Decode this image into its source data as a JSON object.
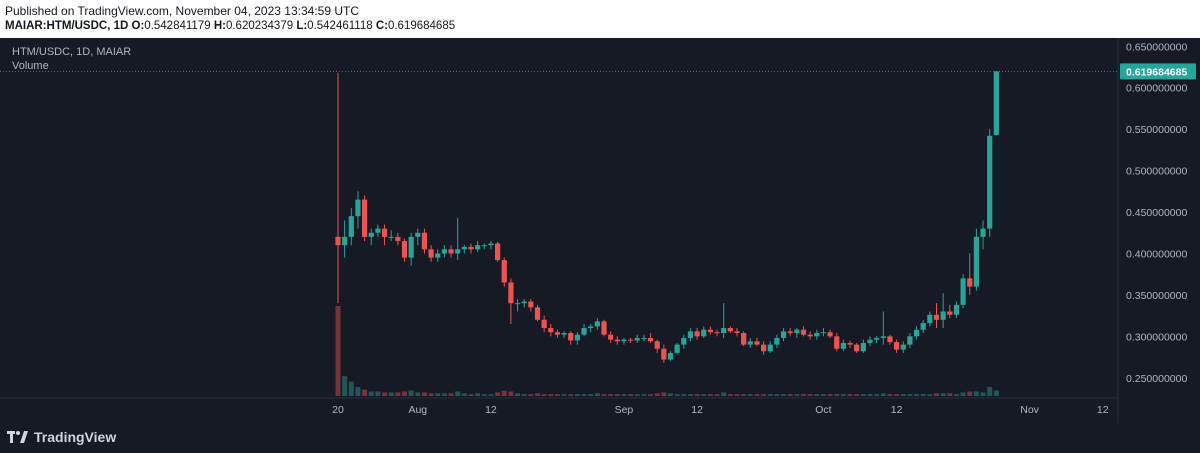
{
  "header": {
    "published": "Published on TradingView.com, November 04, 2023 13:34:59 UTC",
    "symbol_full": "MAIAR:HTM/USDC, 1D",
    "o_label": "O:",
    "o_value": "0.542841179",
    "h_label": "H:",
    "h_value": "0.620234379",
    "l_label": "L:",
    "l_value": "0.542461118",
    "c_label": "C:",
    "c_value": "0.619684685"
  },
  "chart_legend": {
    "symbol_line": "HTM/USDC, 1D, MAIAR",
    "volume_label": "Volume"
  },
  "footer": {
    "brand": "TradingView"
  },
  "colors": {
    "background": "#161a25",
    "up": "#26a69a",
    "down": "#ef5350",
    "text": "#b2b5be"
  },
  "chart_data": {
    "type": "candlestick",
    "title": "",
    "ylim": [
      0.228,
      0.66
    ],
    "y_ticks": [
      "0.650000000",
      "0.600000000",
      "0.550000000",
      "0.500000000",
      "0.450000000",
      "0.400000000",
      "0.350000000",
      "0.300000000",
      "0.250000000"
    ],
    "x_tick_labels": [
      {
        "label": "20",
        "day": 0
      },
      {
        "label": "Aug",
        "day": 12
      },
      {
        "label": "12",
        "day": 23
      },
      {
        "label": "Sep",
        "day": 43
      },
      {
        "label": "12",
        "day": 54
      },
      {
        "label": "Oct",
        "day": 73
      },
      {
        "label": "12",
        "day": 84
      },
      {
        "label": "Nov",
        "day": 104
      },
      {
        "label": "12",
        "day": 115
      }
    ],
    "last_price": "0.619684685",
    "last_value": 0.619684685,
    "candles": [
      [
        0.42,
        0.618,
        0.34,
        0.41
      ],
      [
        0.41,
        0.44,
        0.395,
        0.42
      ],
      [
        0.42,
        0.455,
        0.41,
        0.445
      ],
      [
        0.445,
        0.475,
        0.43,
        0.465
      ],
      [
        0.465,
        0.47,
        0.415,
        0.42
      ],
      [
        0.42,
        0.43,
        0.41,
        0.425
      ],
      [
        0.425,
        0.435,
        0.42,
        0.43
      ],
      [
        0.43,
        0.435,
        0.41,
        0.42
      ],
      [
        0.42,
        0.428,
        0.415,
        0.42
      ],
      [
        0.42,
        0.425,
        0.41,
        0.415
      ],
      [
        0.415,
        0.418,
        0.39,
        0.395
      ],
      [
        0.395,
        0.425,
        0.385,
        0.42
      ],
      [
        0.42,
        0.43,
        0.41,
        0.425
      ],
      [
        0.425,
        0.43,
        0.4,
        0.405
      ],
      [
        0.405,
        0.41,
        0.39,
        0.395
      ],
      [
        0.395,
        0.405,
        0.39,
        0.4
      ],
      [
        0.4,
        0.41,
        0.395,
        0.405
      ],
      [
        0.405,
        0.41,
        0.395,
        0.4
      ],
      [
        0.4,
        0.443,
        0.392,
        0.405
      ],
      [
        0.405,
        0.41,
        0.4,
        0.408
      ],
      [
        0.408,
        0.412,
        0.4,
        0.405
      ],
      [
        0.405,
        0.415,
        0.402,
        0.41
      ],
      [
        0.41,
        0.412,
        0.405,
        0.41
      ],
      [
        0.41,
        0.415,
        0.405,
        0.412
      ],
      [
        0.412,
        0.414,
        0.39,
        0.392
      ],
      [
        0.392,
        0.395,
        0.36,
        0.365
      ],
      [
        0.365,
        0.37,
        0.315,
        0.34
      ],
      [
        0.34,
        0.345,
        0.33,
        0.34
      ],
      [
        0.34,
        0.345,
        0.335,
        0.342
      ],
      [
        0.342,
        0.345,
        0.33,
        0.335
      ],
      [
        0.335,
        0.338,
        0.318,
        0.32
      ],
      [
        0.32,
        0.325,
        0.305,
        0.31
      ],
      [
        0.31,
        0.315,
        0.3,
        0.305
      ],
      [
        0.305,
        0.308,
        0.298,
        0.302
      ],
      [
        0.302,
        0.306,
        0.298,
        0.304
      ],
      [
        0.304,
        0.306,
        0.29,
        0.295
      ],
      [
        0.295,
        0.305,
        0.29,
        0.302
      ],
      [
        0.302,
        0.315,
        0.3,
        0.31
      ],
      [
        0.31,
        0.315,
        0.305,
        0.312
      ],
      [
        0.312,
        0.322,
        0.308,
        0.318
      ],
      [
        0.318,
        0.32,
        0.3,
        0.302
      ],
      [
        0.302,
        0.306,
        0.292,
        0.296
      ],
      [
        0.296,
        0.3,
        0.29,
        0.294
      ],
      [
        0.294,
        0.298,
        0.29,
        0.296
      ],
      [
        0.296,
        0.298,
        0.292,
        0.295
      ],
      [
        0.295,
        0.302,
        0.292,
        0.298
      ],
      [
        0.298,
        0.302,
        0.294,
        0.298
      ],
      [
        0.298,
        0.304,
        0.292,
        0.294
      ],
      [
        0.294,
        0.296,
        0.28,
        0.285
      ],
      [
        0.285,
        0.29,
        0.268,
        0.272
      ],
      [
        0.272,
        0.282,
        0.27,
        0.28
      ],
      [
        0.28,
        0.292,
        0.278,
        0.29
      ],
      [
        0.29,
        0.302,
        0.285,
        0.298
      ],
      [
        0.298,
        0.31,
        0.294,
        0.306
      ],
      [
        0.306,
        0.31,
        0.296,
        0.3
      ],
      [
        0.3,
        0.312,
        0.298,
        0.308
      ],
      [
        0.308,
        0.312,
        0.302,
        0.305
      ],
      [
        0.305,
        0.308,
        0.3,
        0.304
      ],
      [
        0.304,
        0.34,
        0.298,
        0.31
      ],
      [
        0.31,
        0.312,
        0.304,
        0.306
      ],
      [
        0.306,
        0.31,
        0.3,
        0.304
      ],
      [
        0.304,
        0.306,
        0.288,
        0.29
      ],
      [
        0.29,
        0.298,
        0.286,
        0.294
      ],
      [
        0.294,
        0.298,
        0.288,
        0.29
      ],
      [
        0.29,
        0.294,
        0.278,
        0.282
      ],
      [
        0.282,
        0.294,
        0.28,
        0.29
      ],
      [
        0.29,
        0.302,
        0.286,
        0.298
      ],
      [
        0.298,
        0.31,
        0.294,
        0.306
      ],
      [
        0.306,
        0.31,
        0.3,
        0.304
      ],
      [
        0.304,
        0.31,
        0.298,
        0.308
      ],
      [
        0.308,
        0.312,
        0.3,
        0.302
      ],
      [
        0.302,
        0.306,
        0.296,
        0.3
      ],
      [
        0.3,
        0.308,
        0.296,
        0.304
      ],
      [
        0.304,
        0.31,
        0.3,
        0.305
      ],
      [
        0.305,
        0.308,
        0.298,
        0.3
      ],
      [
        0.3,
        0.304,
        0.282,
        0.285
      ],
      [
        0.285,
        0.296,
        0.282,
        0.292
      ],
      [
        0.292,
        0.295,
        0.286,
        0.29
      ],
      [
        0.29,
        0.292,
        0.28,
        0.282
      ],
      [
        0.282,
        0.296,
        0.28,
        0.292
      ],
      [
        0.292,
        0.3,
        0.288,
        0.296
      ],
      [
        0.296,
        0.3,
        0.292,
        0.298
      ],
      [
        0.298,
        0.33,
        0.29,
        0.3
      ],
      [
        0.3,
        0.302,
        0.29,
        0.293
      ],
      [
        0.293,
        0.296,
        0.28,
        0.284
      ],
      [
        0.284,
        0.294,
        0.28,
        0.29
      ],
      [
        0.29,
        0.304,
        0.286,
        0.3
      ],
      [
        0.3,
        0.312,
        0.296,
        0.308
      ],
      [
        0.308,
        0.32,
        0.304,
        0.316
      ],
      [
        0.316,
        0.33,
        0.312,
        0.326
      ],
      [
        0.326,
        0.34,
        0.31,
        0.32
      ],
      [
        0.32,
        0.352,
        0.31,
        0.33
      ],
      [
        0.33,
        0.338,
        0.322,
        0.326
      ],
      [
        0.326,
        0.342,
        0.322,
        0.338
      ],
      [
        0.338,
        0.375,
        0.334,
        0.37
      ],
      [
        0.37,
        0.4,
        0.35,
        0.36
      ],
      [
        0.36,
        0.43,
        0.355,
        0.42
      ],
      [
        0.42,
        0.44,
        0.405,
        0.43
      ],
      [
        0.43,
        0.55,
        0.42,
        0.542
      ],
      [
        0.542841179,
        0.620234379,
        0.542461118,
        0.619684685
      ]
    ],
    "volume": [
      1.0,
      0.22,
      0.16,
      0.1,
      0.07,
      0.05,
      0.05,
      0.04,
      0.04,
      0.04,
      0.05,
      0.06,
      0.04,
      0.04,
      0.03,
      0.03,
      0.03,
      0.03,
      0.05,
      0.03,
      0.02,
      0.03,
      0.02,
      0.02,
      0.04,
      0.06,
      0.05,
      0.03,
      0.02,
      0.02,
      0.03,
      0.02,
      0.02,
      0.02,
      0.02,
      0.02,
      0.02,
      0.02,
      0.02,
      0.03,
      0.02,
      0.02,
      0.02,
      0.02,
      0.02,
      0.02,
      0.02,
      0.02,
      0.03,
      0.04,
      0.03,
      0.02,
      0.02,
      0.02,
      0.02,
      0.02,
      0.02,
      0.02,
      0.04,
      0.02,
      0.02,
      0.02,
      0.02,
      0.02,
      0.02,
      0.02,
      0.02,
      0.02,
      0.02,
      0.02,
      0.02,
      0.02,
      0.02,
      0.02,
      0.02,
      0.02,
      0.02,
      0.02,
      0.02,
      0.02,
      0.02,
      0.02,
      0.03,
      0.02,
      0.02,
      0.02,
      0.02,
      0.02,
      0.02,
      0.02,
      0.03,
      0.03,
      0.03,
      0.02,
      0.04,
      0.05,
      0.05,
      0.04,
      0.1,
      0.06
    ]
  }
}
